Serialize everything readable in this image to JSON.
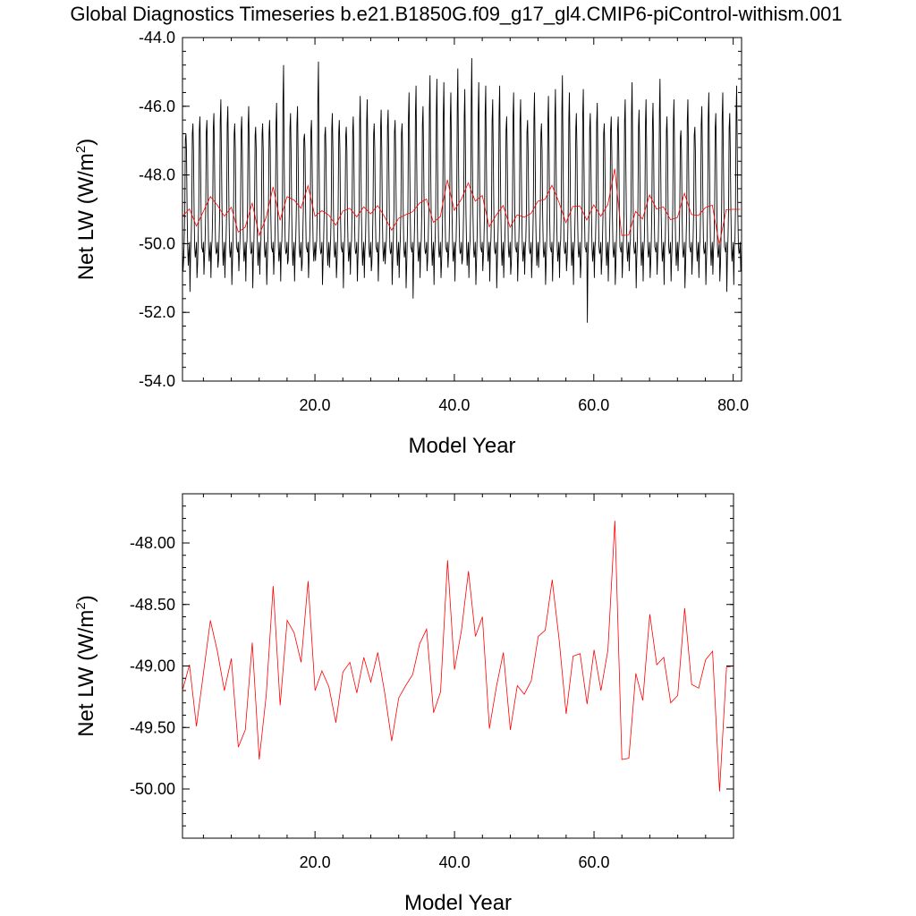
{
  "title": "Global Diagnostics Timeseries b.e21.B1850G.f09_g17_gl4.CMIP6-piControl-withism.001",
  "chart_data": [
    {
      "type": "line",
      "title": "",
      "xlabel": "Model Year",
      "ylabel": "Net LW (W/m",
      "ylabel_superscript": "2",
      "ylabel_close": ")",
      "xlim": [
        1,
        81.2
      ],
      "ylim": [
        -54,
        -44
      ],
      "xticks": [
        "20.0",
        "40.0",
        "60.0",
        "80.0"
      ],
      "xtick_values": [
        20,
        40,
        60,
        80
      ],
      "yticks": [
        "-44.0",
        "-46.0",
        "-48.0",
        "-50.0",
        "-52.0",
        "-54.0"
      ],
      "ytick_values": [
        -44,
        -46,
        -48,
        -50,
        -52,
        -54
      ],
      "grid": false,
      "series": [
        {
          "color": "#000000",
          "description_of_mark": "monthly values",
          "x_start": 1.0,
          "x_step": 0.0833333,
          "pattern": [
            -49.95,
            -50.55,
            -50.35,
            -49.9,
            -49.0,
            -47.7,
            -46.5,
            -47.3,
            -49.1,
            -50.1,
            -50.4,
            -50.25
          ],
          "peaks": [
            -46.8,
            -46.5,
            -46.3,
            -46.4,
            -46.2,
            -45.8,
            -46.0,
            -46.5,
            -46.3,
            -46.0,
            -46.6,
            -46.5,
            -46.4,
            -45.9,
            -44.8,
            -46.2,
            -46.0,
            -46.8,
            -46.4,
            -44.7,
            -46.6,
            -46.2,
            -46.4,
            -46.6,
            -46.3,
            -45.7,
            -45.8,
            -46.5,
            -46.1,
            -46.1,
            -46.4,
            -46.5,
            -45.6,
            -45.4,
            -46.0,
            -45.1,
            -45.2,
            -45.3,
            -45.6,
            -44.9,
            -45.5,
            -44.6,
            -45.3,
            -45.4,
            -45.8,
            -45.4,
            -46.3,
            -45.6,
            -45.8,
            -46.4,
            -45.6,
            -46.5,
            -45.7,
            -45.5,
            -45.1,
            -45.6,
            -46.2,
            -45.5,
            -46.2,
            -45.9,
            -46.5,
            -46.3,
            -46.3,
            -45.8,
            -45.3,
            -46.1,
            -45.8,
            -45.9,
            -45.2,
            -46.3,
            -45.8,
            -46.7,
            -45.8,
            -46.6,
            -46.0,
            -45.6,
            -46.2,
            -45.6,
            -46.2,
            -45.4,
            -45.4
          ],
          "troughs": [
            -50.8,
            -51.4,
            -51.0,
            -50.9,
            -51.0,
            -50.7,
            -51.0,
            -51.2,
            -50.8,
            -51.1,
            -51.3,
            -50.9,
            -51.2,
            -50.9,
            -51.1,
            -50.6,
            -51.1,
            -50.8,
            -51.0,
            -50.5,
            -51.2,
            -50.7,
            -51.0,
            -51.3,
            -50.9,
            -51.1,
            -51.0,
            -50.8,
            -51.1,
            -50.6,
            -51.2,
            -51.0,
            -51.3,
            -51.6,
            -51.0,
            -50.8,
            -51.2,
            -51.0,
            -50.7,
            -51.1,
            -50.6,
            -51.0,
            -51.2,
            -50.8,
            -51.1,
            -51.3,
            -51.0,
            -50.9,
            -51.1,
            -50.9,
            -51.0,
            -50.7,
            -51.2,
            -51.1,
            -51.0,
            -50.8,
            -51.2,
            -51.0,
            -52.3,
            -51.0,
            -50.9,
            -51.1,
            -51.2,
            -51.0,
            -50.8,
            -51.3,
            -51.1,
            -51.0,
            -50.9,
            -51.2,
            -51.1,
            -50.8,
            -51.3,
            -50.9,
            -51.0,
            -51.2,
            -50.9,
            -51.1,
            -51.4,
            -51.2,
            -50.8
          ]
        },
        {
          "color": "#ff0000",
          "description_of_mark": "annual means",
          "x": [
            1,
            2,
            3,
            4,
            5,
            6,
            7,
            8,
            9,
            10,
            11,
            12,
            13,
            14,
            15,
            16,
            17,
            18,
            19,
            20,
            21,
            22,
            23,
            24,
            25,
            26,
            27,
            28,
            29,
            30,
            31,
            32,
            33,
            34,
            35,
            36,
            37,
            38,
            39,
            40,
            41,
            42,
            43,
            44,
            45,
            46,
            47,
            48,
            49,
            50,
            51,
            52,
            53,
            54,
            55,
            56,
            57,
            58,
            59,
            60,
            61,
            62,
            63,
            64,
            65,
            66,
            67,
            68,
            69,
            70,
            71,
            72,
            73,
            74,
            75,
            76,
            77,
            78,
            79,
            80,
            81
          ],
          "values": [
            -49.2,
            -48.99,
            -49.49,
            -49.06,
            -48.63,
            -48.88,
            -49.2,
            -48.94,
            -49.66,
            -49.52,
            -48.81,
            -49.76,
            -49.24,
            -48.35,
            -49.32,
            -48.63,
            -48.73,
            -48.97,
            -48.31,
            -49.2,
            -49.04,
            -49.17,
            -49.46,
            -49.05,
            -48.97,
            -49.22,
            -48.93,
            -49.13,
            -48.89,
            -49.22,
            -49.61,
            -49.26,
            -49.16,
            -49.07,
            -48.82,
            -48.7,
            -49.38,
            -49.21,
            -48.14,
            -49.03,
            -48.71,
            -48.23,
            -48.76,
            -48.6,
            -49.51,
            -49.17,
            -48.89,
            -49.52,
            -49.16,
            -49.23,
            -49.12,
            -48.76,
            -48.71,
            -48.3,
            -48.79,
            -49.39,
            -48.92,
            -48.9,
            -49.31,
            -48.87,
            -49.2,
            -48.87,
            -47.82,
            -49.76,
            -49.75,
            -49.06,
            -49.28,
            -48.58,
            -48.99,
            -48.93,
            -49.3,
            -49.24,
            -48.53,
            -49.15,
            -49.18,
            -48.95,
            -48.88,
            -50.02,
            -49.01,
            -49.0,
            -49.0
          ]
        }
      ]
    },
    {
      "type": "line",
      "title": "",
      "xlabel": "Model Year",
      "ylabel": "Net LW (W/m",
      "ylabel_superscript": "2",
      "ylabel_close": ")",
      "xlim": [
        1,
        80
      ],
      "ylim": [
        -50.4,
        -47.6
      ],
      "xticks": [
        "20.0",
        "40.0",
        "60.0"
      ],
      "xtick_values": [
        20,
        40,
        60
      ],
      "yticks": [
        "-48.00",
        "-48.50",
        "-49.00",
        "-49.50",
        "-50.00"
      ],
      "ytick_values": [
        -48,
        -48.5,
        -49,
        -49.5,
        -50
      ],
      "grid": false,
      "series": [
        {
          "color": "#ff0000",
          "description_of_mark": "annual means",
          "x": [
            1,
            2,
            3,
            4,
            5,
            6,
            7,
            8,
            9,
            10,
            11,
            12,
            13,
            14,
            15,
            16,
            17,
            18,
            19,
            20,
            21,
            22,
            23,
            24,
            25,
            26,
            27,
            28,
            29,
            30,
            31,
            32,
            33,
            34,
            35,
            36,
            37,
            38,
            39,
            40,
            41,
            42,
            43,
            44,
            45,
            46,
            47,
            48,
            49,
            50,
            51,
            52,
            53,
            54,
            55,
            56,
            57,
            58,
            59,
            60,
            61,
            62,
            63,
            64,
            65,
            66,
            67,
            68,
            69,
            70,
            71,
            72,
            73,
            74,
            75,
            76,
            77,
            78,
            79,
            80
          ],
          "values": [
            -49.2,
            -48.99,
            -49.49,
            -49.06,
            -48.63,
            -48.88,
            -49.2,
            -48.94,
            -49.66,
            -49.52,
            -48.81,
            -49.76,
            -49.24,
            -48.35,
            -49.32,
            -48.63,
            -48.73,
            -48.97,
            -48.31,
            -49.2,
            -49.04,
            -49.17,
            -49.46,
            -49.05,
            -48.97,
            -49.22,
            -48.93,
            -49.13,
            -48.89,
            -49.22,
            -49.61,
            -49.26,
            -49.16,
            -49.07,
            -48.82,
            -48.7,
            -49.38,
            -49.21,
            -48.14,
            -49.03,
            -48.71,
            -48.23,
            -48.76,
            -48.6,
            -49.51,
            -49.17,
            -48.89,
            -49.52,
            -49.16,
            -49.23,
            -49.12,
            -48.76,
            -48.71,
            -48.3,
            -48.79,
            -49.39,
            -48.92,
            -48.9,
            -49.31,
            -48.87,
            -49.2,
            -48.87,
            -47.82,
            -49.76,
            -49.75,
            -49.06,
            -49.28,
            -48.58,
            -48.99,
            -48.93,
            -49.3,
            -49.24,
            -48.53,
            -49.15,
            -49.18,
            -48.95,
            -48.88,
            -50.02,
            -49.01,
            -49.0
          ]
        }
      ]
    }
  ]
}
